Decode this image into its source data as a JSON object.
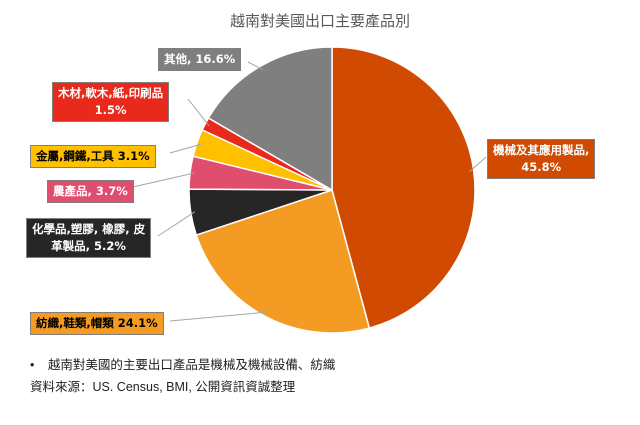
{
  "title": "越南對美國出口主要產品別",
  "chart_data": {
    "type": "pie",
    "title": "越南對美國出口主要產品別",
    "start_angle_deg": 0,
    "slices": [
      {
        "label_lines": [
          "機械及其應用製品,",
          "45.8%"
        ],
        "value": 45.8,
        "color": "#d04a02",
        "label_bg": "#d04a02",
        "label_fg": "#ffffff"
      },
      {
        "label_lines": [
          "紡織,鞋類,帽類 24.1%"
        ],
        "value": 24.1,
        "color": "#f49b24",
        "label_bg": "#f49b24",
        "label_fg": "#000000"
      },
      {
        "label_lines": [
          "化學品,塑膠, 橡膠, 皮",
          "革製品, 5.2%"
        ],
        "value": 5.2,
        "color": "#262626",
        "label_bg": "#262626",
        "label_fg": "#ffffff"
      },
      {
        "label_lines": [
          "農產品, 3.7%"
        ],
        "value": 3.7,
        "color": "#e04e6e",
        "label_bg": "#e04e6e",
        "label_fg": "#ffffff"
      },
      {
        "label_lines": [
          "金屬,鋼鐵,工具 3.1%"
        ],
        "value": 3.1,
        "color": "#ffc000",
        "label_bg": "#ffc000",
        "label_fg": "#000000"
      },
      {
        "label_lines": [
          "木材,軟木,紙,印刷品",
          "1.5%"
        ],
        "value": 1.5,
        "color": "#e8291c",
        "label_bg": "#e8291c",
        "label_fg": "#ffffff"
      },
      {
        "label_lines": [
          "其他, 16.6%"
        ],
        "value": 16.6,
        "color": "#7f7f7f",
        "label_bg": "#7f7f7f",
        "label_fg": "#ffffff"
      }
    ]
  },
  "notes": {
    "bullet": "•",
    "line1": "越南對美國的主要出口產品是機械及機械設備、紡織",
    "line2": "資料來源：US. Census, BMI, 公開資訊資誠整理"
  }
}
